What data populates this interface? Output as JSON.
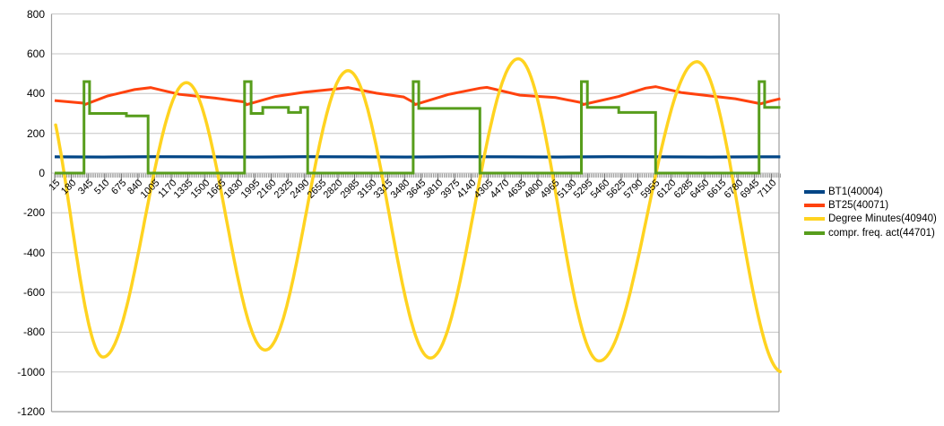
{
  "legend": {
    "items": [
      {
        "label": "BT1(40004)",
        "color": "#004586"
      },
      {
        "label": "BT25(40071)",
        "color": "#FF420E"
      },
      {
        "label": "Degree Minutes(40940)",
        "color": "#FFD320"
      },
      {
        "label": "compr. freq. act(44701)",
        "color": "#579D1C"
      }
    ]
  },
  "axes": {
    "y_tick_labels": [
      "800",
      "600",
      "400",
      "200",
      "0",
      "-200",
      "-400",
      "-600",
      "-800",
      "-1000",
      "-1200"
    ],
    "x_tick_labels": [
      "15",
      "180",
      "345",
      "510",
      "675",
      "840",
      "1005",
      "1170",
      "1335",
      "1500",
      "1665",
      "1830",
      "1995",
      "2160",
      "2325",
      "2490",
      "2655",
      "2820",
      "2985",
      "3150",
      "3315",
      "3480",
      "3645",
      "3810",
      "3975",
      "4140",
      "4305",
      "4470",
      "4635",
      "4800",
      "4965",
      "5130",
      "5295",
      "5460",
      "5625",
      "5790",
      "5955",
      "6120",
      "6285",
      "6450",
      "6615",
      "6780",
      "6945",
      "7110"
    ],
    "grid_color": "#C6C6C6",
    "frame_color": "#9E9E9E",
    "tick_color": "#7A7A7A",
    "text_color": "#000000"
  },
  "chart_data": {
    "type": "line",
    "title": "",
    "xlabel": "",
    "ylabel": "",
    "x_range": [
      15,
      7200
    ],
    "y_range": [
      -1200,
      800
    ],
    "y_step": 200,
    "x_label_step": 165,
    "minor_tick_step": 15,
    "grid": true,
    "legend_position": "right",
    "series": [
      {
        "name": "BT1(40004)",
        "color": "#004586",
        "style": "linear",
        "width": 3,
        "halo": true,
        "points": [
          [
            15,
            82
          ],
          [
            500,
            81
          ],
          [
            1000,
            83
          ],
          [
            1500,
            82
          ],
          [
            2000,
            81
          ],
          [
            2500,
            83
          ],
          [
            3000,
            82
          ],
          [
            3500,
            81
          ],
          [
            4000,
            83
          ],
          [
            4500,
            82
          ],
          [
            5000,
            81
          ],
          [
            5500,
            83
          ],
          [
            6000,
            82
          ],
          [
            6500,
            81
          ],
          [
            7000,
            82
          ],
          [
            7200,
            82
          ]
        ]
      },
      {
        "name": "BT25(40071)",
        "color": "#FF420E",
        "style": "linear",
        "width": 3,
        "halo": false,
        "points": [
          [
            15,
            365
          ],
          [
            300,
            352
          ],
          [
            315,
            345
          ],
          [
            540,
            388
          ],
          [
            805,
            420
          ],
          [
            965,
            430
          ],
          [
            990,
            427
          ],
          [
            1250,
            396
          ],
          [
            1605,
            377
          ],
          [
            1890,
            358
          ],
          [
            1915,
            344
          ],
          [
            2200,
            385
          ],
          [
            2490,
            407
          ],
          [
            2785,
            422
          ],
          [
            2920,
            430
          ],
          [
            3200,
            402
          ],
          [
            3470,
            383
          ],
          [
            3560,
            358
          ],
          [
            3585,
            345
          ],
          [
            3910,
            395
          ],
          [
            4225,
            427
          ],
          [
            4295,
            431
          ],
          [
            4620,
            392
          ],
          [
            4975,
            380
          ],
          [
            5225,
            355
          ],
          [
            5250,
            345
          ],
          [
            5600,
            385
          ],
          [
            5865,
            427
          ],
          [
            5965,
            435
          ],
          [
            6220,
            405
          ],
          [
            6490,
            389
          ],
          [
            6755,
            374
          ],
          [
            6975,
            352
          ],
          [
            7000,
            348
          ],
          [
            7110,
            363
          ],
          [
            7200,
            374
          ]
        ]
      },
      {
        "name": "Degree Minutes(40940)",
        "color": "#FFD320",
        "style": "cosine_extrema",
        "width": 3.5,
        "halo": false,
        "points": [
          [
            -140,
            460
          ],
          [
            495,
            -925
          ],
          [
            1320,
            455
          ],
          [
            2100,
            -890
          ],
          [
            2920,
            515
          ],
          [
            3735,
            -930
          ],
          [
            4605,
            575
          ],
          [
            5405,
            -945
          ],
          [
            6375,
            560
          ],
          [
            7216,
            -1000
          ]
        ]
      },
      {
        "name": "compr. freq. act(44701)",
        "color": "#579D1C",
        "style": "step",
        "width": 3,
        "halo": false,
        "segments": [
          [
            15,
            305,
            0
          ],
          [
            305,
            360,
            460
          ],
          [
            360,
            725,
            300
          ],
          [
            725,
            940,
            288
          ],
          [
            940,
            1895,
            0
          ],
          [
            1895,
            1960,
            460
          ],
          [
            1960,
            2075,
            300
          ],
          [
            2075,
            2330,
            330
          ],
          [
            2330,
            2450,
            305
          ],
          [
            2450,
            2520,
            330
          ],
          [
            2520,
            3565,
            0
          ],
          [
            3565,
            3620,
            460
          ],
          [
            3620,
            4225,
            325
          ],
          [
            4225,
            5230,
            0
          ],
          [
            5230,
            5290,
            460
          ],
          [
            5290,
            5600,
            330
          ],
          [
            5600,
            5965,
            305
          ],
          [
            5965,
            6990,
            0
          ],
          [
            6990,
            7045,
            460
          ],
          [
            7045,
            7200,
            330
          ]
        ]
      }
    ]
  }
}
